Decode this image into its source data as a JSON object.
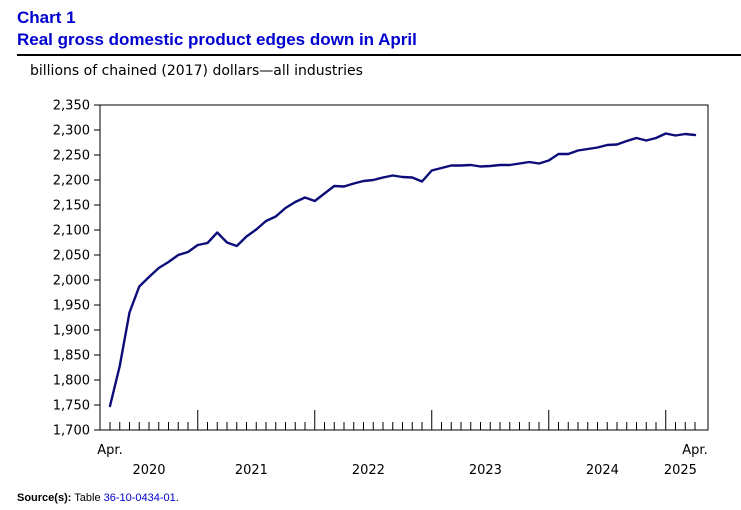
{
  "header": {
    "chart_label": "Chart 1",
    "title": "Real gross domestic product edges down in April",
    "unit_label": "billions of chained (2017) dollars—all industries"
  },
  "source": {
    "label": "Source(s):",
    "text_prefix": "Table",
    "table_id": "36-10-0434-01",
    "suffix": "."
  },
  "colors": {
    "line": "#0d0d7a",
    "title": "#0000d0"
  },
  "chart_data": {
    "type": "line",
    "title": "Real gross domestic product edges down in April",
    "ylabel": "billions of chained (2017) dollars—all industries",
    "xlabel": "",
    "ylim": [
      1700,
      2350
    ],
    "yticks": [
      1700,
      1750,
      1800,
      1850,
      1900,
      1950,
      2000,
      2050,
      2100,
      2150,
      2200,
      2250,
      2300,
      2350
    ],
    "ytick_labels": [
      "1,700",
      "1,750",
      "1,800",
      "1,850",
      "1,900",
      "1,950",
      "2,000",
      "2,050",
      "2,100",
      "2,150",
      "2,200",
      "2,250",
      "2,300",
      "2,350"
    ],
    "x_start": "2020-04",
    "x_end": "2025-04",
    "x_start_label": "Apr.",
    "x_end_label": "Apr.",
    "year_labels": [
      "2020",
      "2021",
      "2022",
      "2023",
      "2024",
      "2025"
    ],
    "grid": false,
    "legend": "none",
    "series": [
      {
        "values": [
          1748,
          1828,
          1935,
          1987,
          2006,
          2024,
          2036,
          2050,
          2056,
          2070,
          2074,
          2095,
          2075,
          2068,
          2087,
          2101,
          2118,
          2127,
          2144,
          2156,
          2165,
          2158,
          2173,
          2188,
          2187,
          2193,
          2198,
          2200,
          2205,
          2209,
          2206,
          2205,
          2197,
          2219,
          2224,
          2229,
          2229,
          2230,
          2227,
          2228,
          2230,
          2230,
          2233,
          2236,
          2233,
          2239,
          2252,
          2252,
          2259,
          2262,
          2265,
          2270,
          2271,
          2278,
          2284,
          2279,
          2284,
          2293,
          2289,
          2292,
          2290
        ]
      }
    ]
  }
}
